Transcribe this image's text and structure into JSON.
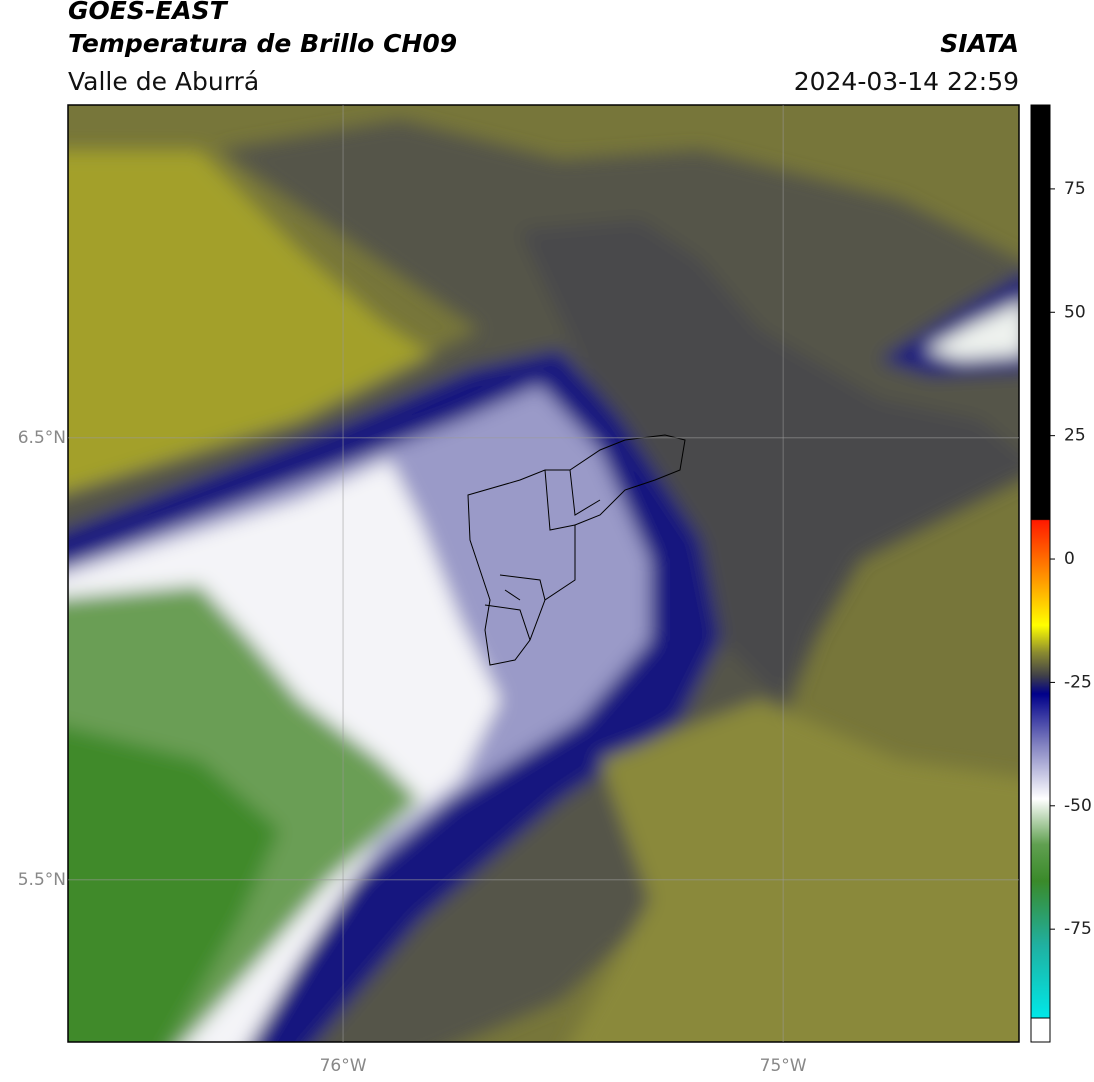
{
  "header": {
    "title": "GOES-EAST",
    "subtitle": "Temperatura de Brillo CH09",
    "region": "Valle de Aburrá",
    "source": "SIATA",
    "datetime": "2024-03-14 22:59"
  },
  "map": {
    "lonlim": [
      -76.625,
      -74.464
    ],
    "latlim": [
      5.133,
      7.253
    ],
    "lonticks": [
      {
        "value": -76,
        "label": "76°W"
      },
      {
        "value": -75,
        "label": "75°W"
      }
    ],
    "latticks": [
      {
        "value": 6.5,
        "label": "6.5°N"
      },
      {
        "value": 5.5,
        "label": "5.5°N"
      }
    ]
  },
  "colorbar": {
    "lim": [
      -93,
      92
    ],
    "ticks": [
      75,
      50,
      25,
      0,
      -25,
      -50,
      -75
    ]
  }
}
